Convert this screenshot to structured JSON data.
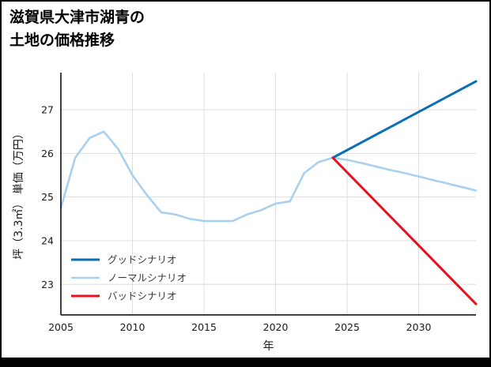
{
  "title": {
    "line1": "滋賀県大津市湖青の",
    "line2": "土地の価格推移"
  },
  "chart_data": {
    "type": "line",
    "title": "滋賀県大津市湖青の土地の価格推移",
    "xlabel": "年",
    "ylabel": "坪（3.3㎡） 単価（万円）",
    "xlim": [
      2005,
      2034
    ],
    "ylim": [
      22.3,
      27.85
    ],
    "xticks": [
      2005,
      2010,
      2015,
      2020,
      2025,
      2030
    ],
    "yticks": [
      23,
      24,
      25,
      26,
      27
    ],
    "grid": true,
    "legend_position": "lower-left",
    "series": [
      {
        "name": "グッドシナリオ",
        "color": "#0b6fb8",
        "width": 3,
        "x": [
          2024,
          2034
        ],
        "y": [
          25.9,
          27.65
        ]
      },
      {
        "name": "ノーマルシナリオ",
        "color": "#a9d0ef",
        "width": 2.6,
        "x": [
          2005,
          2006,
          2007,
          2008,
          2009,
          2010,
          2011,
          2012,
          2013,
          2014,
          2015,
          2016,
          2017,
          2018,
          2019,
          2020,
          2021,
          2022,
          2023,
          2024,
          2025,
          2026,
          2027,
          2028,
          2029,
          2030,
          2031,
          2032,
          2033,
          2034
        ],
        "y": [
          24.75,
          25.9,
          26.35,
          26.5,
          26.1,
          25.5,
          25.05,
          24.65,
          24.6,
          24.5,
          24.45,
          24.45,
          24.45,
          24.6,
          24.7,
          24.85,
          24.9,
          25.55,
          25.8,
          25.9,
          25.85,
          25.78,
          25.7,
          25.62,
          25.55,
          25.47,
          25.39,
          25.31,
          25.23,
          25.15
        ]
      },
      {
        "name": "バッドシナリオ",
        "color": "#e8101c",
        "width": 3,
        "x": [
          2024,
          2034
        ],
        "y": [
          25.9,
          22.55
        ]
      }
    ]
  }
}
